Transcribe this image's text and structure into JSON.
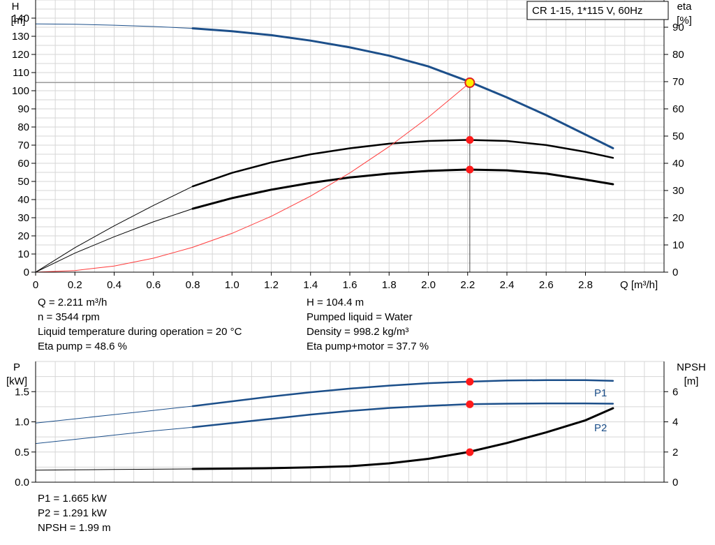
{
  "chart_data": [
    {
      "type": "line",
      "title": "CR 1-15, 1*115 V, 60Hz",
      "xlabel": "Q [m³/h]",
      "ylabel_left": [
        "H",
        "[m]"
      ],
      "ylabel_right": [
        "eta",
        "[%]"
      ],
      "xlim": [
        0,
        3.2
      ],
      "ylim_left": [
        0,
        150
      ],
      "ylim_right": [
        0,
        100
      ],
      "x_ticks": [
        "0",
        "0.2",
        "0.4",
        "0.6",
        "0.8",
        "1.0",
        "1.2",
        "1.4",
        "1.6",
        "1.8",
        "2.0",
        "2.2",
        "2.4",
        "2.6",
        "2.8"
      ],
      "y_ticks_left": [
        "0",
        "10",
        "20",
        "30",
        "40",
        "50",
        "60",
        "70",
        "80",
        "90",
        "100",
        "110",
        "120",
        "130",
        "140"
      ],
      "y_ticks_right": [
        "0",
        "10",
        "20",
        "30",
        "40",
        "50",
        "60",
        "70",
        "80",
        "90"
      ],
      "grid": true,
      "duty_point": {
        "q": 2.211,
        "h": 104.4,
        "eta_pump": 48.6,
        "eta_pump_motor": 37.7
      },
      "series": [
        {
          "key": "head",
          "axis": "left",
          "color": "#1c4f8a",
          "x": [
            0,
            0.2,
            0.4,
            0.6,
            0.8,
            1.0,
            1.2,
            1.4,
            1.6,
            1.8,
            2.0,
            2.2,
            2.4,
            2.6,
            2.8,
            2.94
          ],
          "values": [
            136.8,
            136.6,
            136.1,
            135.4,
            134.4,
            132.8,
            130.6,
            127.6,
            123.9,
            119.3,
            113.4,
            105.3,
            96.3,
            86.5,
            75.8,
            68.3
          ]
        },
        {
          "key": "eta-pump",
          "axis": "right",
          "color": "#000000",
          "x": [
            0,
            0.2,
            0.4,
            0.6,
            0.8,
            1.0,
            1.2,
            1.4,
            1.6,
            1.8,
            2.0,
            2.2,
            2.4,
            2.6,
            2.8,
            2.94
          ],
          "values": [
            0,
            9,
            17,
            24.5,
            31.5,
            36.5,
            40.3,
            43.3,
            45.5,
            47.2,
            48.2,
            48.6,
            48.2,
            46.7,
            44.2,
            42
          ]
        },
        {
          "key": "eta-pump-motor",
          "axis": "right",
          "color": "#000000",
          "x": [
            0,
            0.2,
            0.4,
            0.6,
            0.8,
            1.0,
            1.2,
            1.4,
            1.6,
            1.8,
            2.0,
            2.2,
            2.4,
            2.6,
            2.8,
            2.94
          ],
          "values": [
            0,
            7,
            13,
            18.5,
            23.3,
            27.2,
            30.3,
            32.8,
            34.8,
            36.2,
            37.2,
            37.7,
            37.4,
            36.2,
            34,
            32.3
          ]
        },
        {
          "key": "system-curve",
          "axis": "left",
          "color": "#ff3b3b",
          "x": [
            0,
            0.2,
            0.4,
            0.6,
            0.8,
            1.0,
            1.2,
            1.4,
            1.6,
            1.8,
            2.0,
            2.211
          ],
          "values": [
            0,
            0.9,
            3.4,
            7.7,
            13.7,
            21.4,
            30.8,
            41.9,
            54.7,
            69.2,
            85.4,
            104.4
          ]
        }
      ]
    },
    {
      "type": "line",
      "ylabel_left": [
        "P",
        "[kW]"
      ],
      "ylabel_right": [
        "NPSH",
        "[m]"
      ],
      "xlim": [
        0,
        3.2
      ],
      "ylim_left": [
        0,
        2.0
      ],
      "ylim_right": [
        0,
        8
      ],
      "y_ticks_left": [
        "0.0",
        "0.5",
        "1.0",
        "1.5"
      ],
      "y_ticks_right": [
        "0",
        "2",
        "4",
        "6"
      ],
      "grid": true,
      "duty_point": {
        "p1": 1.665,
        "p2": 1.291,
        "npsh": 1.99
      },
      "series": [
        {
          "key": "p1",
          "name": "P1",
          "axis": "left",
          "color": "#1c4f8a",
          "x": [
            0,
            0.2,
            0.4,
            0.6,
            0.8,
            1.0,
            1.2,
            1.4,
            1.6,
            1.8,
            2.0,
            2.2,
            2.4,
            2.6,
            2.8,
            2.94
          ],
          "values": [
            0.98,
            1.05,
            1.12,
            1.19,
            1.26,
            1.34,
            1.42,
            1.49,
            1.55,
            1.6,
            1.64,
            1.665,
            1.685,
            1.69,
            1.69,
            1.68
          ]
        },
        {
          "key": "p2",
          "name": "P2",
          "axis": "left",
          "color": "#1c4f8a",
          "x": [
            0,
            0.2,
            0.4,
            0.6,
            0.8,
            1.0,
            1.2,
            1.4,
            1.6,
            1.8,
            2.0,
            2.2,
            2.4,
            2.6,
            2.8,
            2.94
          ],
          "values": [
            0.64,
            0.71,
            0.78,
            0.85,
            0.91,
            0.98,
            1.05,
            1.12,
            1.18,
            1.23,
            1.265,
            1.291,
            1.3,
            1.305,
            1.305,
            1.3
          ]
        },
        {
          "key": "npsh",
          "axis": "right",
          "color": "#000000",
          "x": [
            0,
            0.2,
            0.4,
            0.6,
            0.8,
            1.0,
            1.2,
            1.4,
            1.6,
            1.8,
            2.0,
            2.2,
            2.4,
            2.6,
            2.8,
            2.94
          ],
          "values": [
            0.8,
            0.82,
            0.84,
            0.86,
            0.88,
            0.9,
            0.93,
            0.98,
            1.06,
            1.25,
            1.55,
            1.99,
            2.6,
            3.3,
            4.1,
            4.9
          ]
        }
      ]
    }
  ],
  "readout_top": {
    "q": "Q = 2.211 m³/h",
    "n": "n = 3544 rpm",
    "temp": "Liquid temperature during operation = 20 °C",
    "eta_pump": "Eta pump = 48.6 %",
    "h": "H = 104.4 m",
    "liquid": "Pumped liquid = Water",
    "density": "Density = 998.2 kg/m³",
    "eta_pm": "Eta pump+motor = 37.7 %"
  },
  "readout_bottom": {
    "p1": "P1 = 1.665 kW",
    "p2": "P2 = 1.291 kW",
    "npsh": "NPSH = 1.99 m"
  }
}
